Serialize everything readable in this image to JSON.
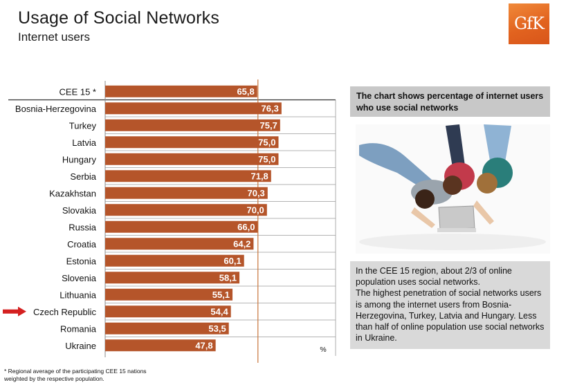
{
  "header": {
    "title": "Usage of Social Networks",
    "subtitle": "Internet users",
    "logo_text": "GfK",
    "logo_color": "#e2631f"
  },
  "chart_data": {
    "type": "bar",
    "orientation": "horizontal",
    "categories": [
      "CEE 15 *",
      "Bosnia-Herzegovina",
      "Turkey",
      "Latvia",
      "Hungary",
      "Serbia",
      "Kazakhstan",
      "Slovakia",
      "Russia",
      "Croatia",
      "Estonia",
      "Slovenia",
      "Lithuania",
      "Czech Republic",
      "Romania",
      "Ukraine"
    ],
    "values": [
      65.8,
      76.3,
      75.7,
      75.0,
      75.0,
      71.8,
      70.3,
      70.0,
      66.0,
      64.2,
      60.1,
      58.1,
      55.1,
      54.4,
      53.5,
      47.8
    ],
    "data_labels": [
      "65,8",
      "76,3",
      "75,7",
      "75,0",
      "75,0",
      "71,8",
      "70,3",
      "70,0",
      "66,0",
      "64,2",
      "60,1",
      "58,1",
      "55,1",
      "54,4",
      "53,5",
      "47,8"
    ],
    "unit_label": "%",
    "reference_line": 65.8,
    "highlighted_category": "Czech Republic",
    "bar_color": "#b5552a",
    "reference_line_color": "#c8743a",
    "arrow_color": "#d42020",
    "xlim": [
      0,
      100
    ],
    "grid": false
  },
  "info_box": {
    "text": "The chart shows percentage of internet users who use social networks"
  },
  "photo": {
    "description_icon": "photo-three-girls-laptop"
  },
  "text_box": {
    "p1": "In the CEE 15 region, about 2/3 of online population uses social networks.",
    "p2": "The highest penetration of social networks users is among the internet users from Bosnia-Herzegovina, Turkey, Latvia and Hungary. Less than half of online population use social networks in Ukraine."
  },
  "footnote": {
    "line1": "* Regional average of the participating CEE 15 nations",
    "line2": "weighted by the respective population."
  }
}
